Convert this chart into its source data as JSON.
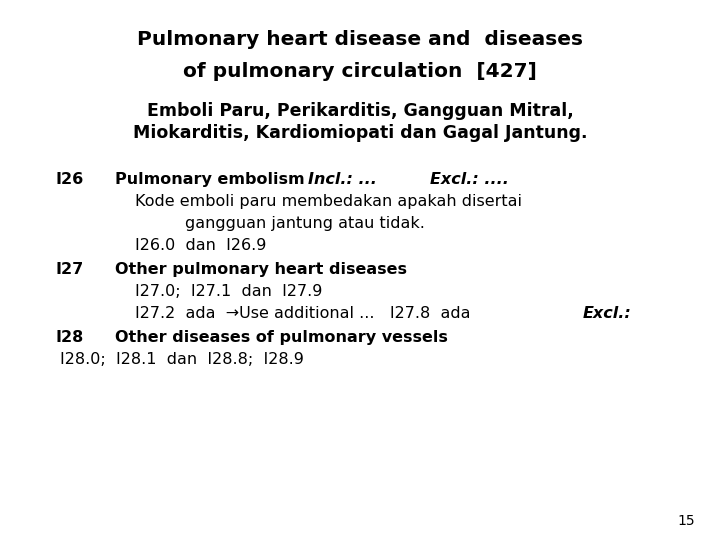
{
  "bg_color": "#ffffff",
  "title_line1": "Pulmonary heart disease and  diseases",
  "title_line2_bold": "of pulmonary circulation",
  "title_line2_normal": "  [427]",
  "subtitle_line1": "Emboli Paru, Perikarditis, Gangguan Mitral,",
  "subtitle_line2": "Miokarditis, Kardiomiopati dan Gagal Jantung.",
  "page_number": "15",
  "title_fontsize": 14.5,
  "subtitle_fontsize": 12.5,
  "body_fontsize": 11.5,
  "label_fontsize": 11.5
}
